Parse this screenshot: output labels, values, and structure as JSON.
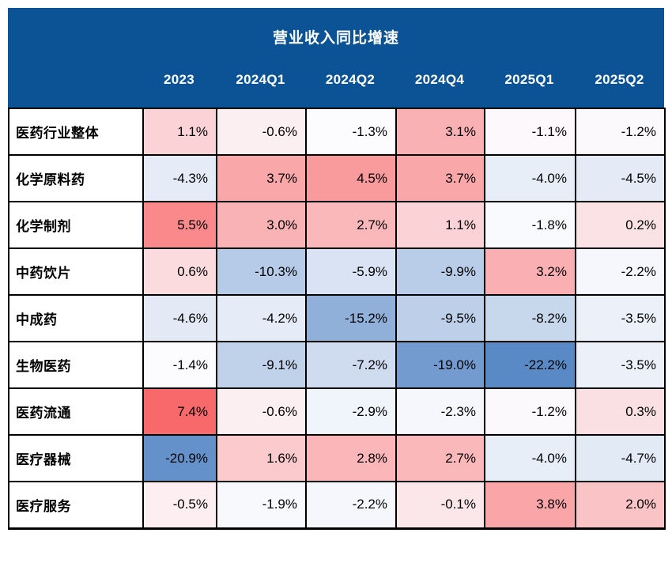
{
  "page": {
    "background_color": "#ffffff",
    "border_color": "#000000",
    "text_color": "#000000"
  },
  "header": {
    "background_color": "#0B5394",
    "text_color": "#ffffff"
  },
  "chart_data": {
    "type": "heatmap",
    "title": "营业收入同比增速",
    "unit": "%",
    "columns": [
      "2023",
      "2024Q1",
      "2024Q2",
      "2024Q4",
      "2025Q1",
      "2025Q2"
    ],
    "rows": [
      "医药行业整体",
      "化学原料药",
      "化学制剂",
      "中药饮片",
      "中成药",
      "生物医药",
      "医药流通",
      "医疗器械",
      "医疗服务"
    ],
    "values": [
      [
        1.1,
        -0.6,
        -1.3,
        3.1,
        -1.1,
        -1.2
      ],
      [
        -4.3,
        3.7,
        4.5,
        3.7,
        -4.0,
        -4.5
      ],
      [
        5.5,
        3.0,
        2.7,
        1.1,
        -1.8,
        0.2
      ],
      [
        0.6,
        -10.3,
        -5.9,
        -9.9,
        3.2,
        -2.2
      ],
      [
        -4.6,
        -4.2,
        -15.2,
        -9.5,
        -8.2,
        -3.5
      ],
      [
        -1.4,
        -9.1,
        -7.2,
        -19.0,
        -22.2,
        -3.5
      ],
      [
        7.4,
        -0.6,
        -2.9,
        -2.3,
        -1.2,
        0.3
      ],
      [
        -20.9,
        1.6,
        2.8,
        2.7,
        -4.0,
        -4.7
      ],
      [
        -0.5,
        -1.9,
        -2.2,
        -0.1,
        3.8,
        2.0
      ]
    ],
    "colorscale": {
      "max_color": "#F8696B",
      "mid_color": "#FCFCFF",
      "min_color": "#5A8AC6",
      "midpoint": "median",
      "value_range": [
        -22.2,
        7.4
      ]
    },
    "layout": {
      "grid": "on",
      "value_alignment": "right",
      "row_label_alignment": "left"
    }
  }
}
